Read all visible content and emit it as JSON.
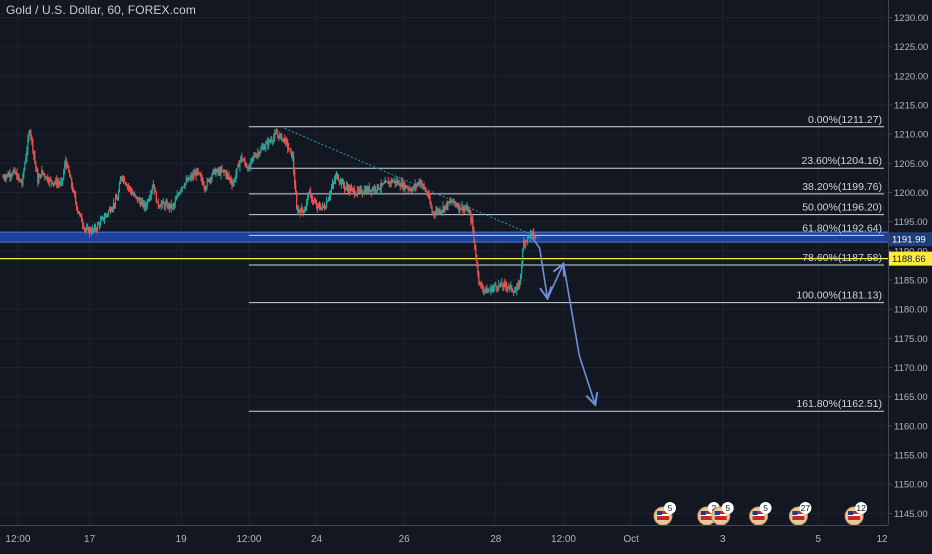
{
  "header": {
    "symbol_title": "Gold / U.S. Dollar, 60, FOREX.com"
  },
  "colors": {
    "background": "#131722",
    "grid": "#1f2330",
    "axis_text": "#b2b5be",
    "up_candle": "#26a69a",
    "down_candle": "#ef5350",
    "fib_line": "#d1d4dc",
    "support_zone": "#2962ff",
    "yellow_line": "#ffeb3b",
    "arrow": "#6f8fd8",
    "trendline": "#26a69a"
  },
  "chart_data": {
    "type": "candlestick",
    "title": "Gold / U.S. Dollar, 60, FOREX.com",
    "y_axis": {
      "range": [
        1143,
        1233
      ],
      "ticks": [
        1145,
        1150,
        1155,
        1160,
        1165,
        1170,
        1175,
        1180,
        1185,
        1190,
        1195,
        1200,
        1205,
        1210,
        1215,
        1220,
        1225,
        1230
      ],
      "tick_labels": [
        "1145.00",
        "1150.00",
        "1155.00",
        "1160.00",
        "1165.00",
        "1170.00",
        "1175.00",
        "1180.00",
        "1185.00",
        "1190.00",
        "1195.00",
        "1200.00",
        "1205.00",
        "1210.00",
        "1215.00",
        "1220.00",
        "1225.00",
        "1230.00"
      ]
    },
    "x_axis": {
      "range_bars": [
        0,
        222
      ],
      "ticks": [
        {
          "bar": 4,
          "label": "12:00"
        },
        {
          "bar": 22,
          "label": "17"
        },
        {
          "bar": 45,
          "label": "19"
        },
        {
          "bar": 62,
          "label": "12:00"
        },
        {
          "bar": 79,
          "label": "24"
        },
        {
          "bar": 101,
          "label": "26"
        },
        {
          "bar": 124,
          "label": "28"
        },
        {
          "bar": 141,
          "label": "12:00"
        },
        {
          "bar": 158,
          "label": "Oct"
        },
        {
          "bar": 181,
          "label": "3"
        },
        {
          "bar": 205,
          "label": "5"
        },
        {
          "bar": 221,
          "label": "12"
        }
      ]
    },
    "price_path": [
      [
        0,
        1202.6
      ],
      [
        3,
        1203.5
      ],
      [
        5,
        1201.5
      ],
      [
        7,
        1211
      ],
      [
        9,
        1202
      ],
      [
        10,
        1203.5
      ],
      [
        12,
        1202
      ],
      [
        15,
        1201.5
      ],
      [
        16,
        1205.5
      ],
      [
        19,
        1197
      ],
      [
        21,
        1193.5
      ],
      [
        23,
        1193.5
      ],
      [
        26,
        1196
      ],
      [
        29,
        1199
      ],
      [
        30,
        1203
      ],
      [
        33,
        1199.5
      ],
      [
        36,
        1197.5
      ],
      [
        38,
        1201.5
      ],
      [
        39,
        1198
      ],
      [
        40,
        1198
      ],
      [
        43,
        1197.5
      ],
      [
        45,
        1201
      ],
      [
        49,
        1203.5
      ],
      [
        51,
        1201
      ],
      [
        53,
        1203.5
      ],
      [
        56,
        1203.5
      ],
      [
        58,
        1201.5
      ],
      [
        60,
        1206
      ],
      [
        62,
        1204
      ],
      [
        63,
        1206
      ],
      [
        66,
        1208
      ],
      [
        69,
        1210
      ],
      [
        71,
        1209
      ],
      [
        73,
        1206
      ],
      [
        74,
        1197
      ],
      [
        76,
        1197
      ],
      [
        77,
        1200
      ],
      [
        79,
        1197.5
      ],
      [
        81,
        1197.5
      ],
      [
        84,
        1203
      ],
      [
        86,
        1201
      ],
      [
        89,
        1200
      ],
      [
        92,
        1200.5
      ],
      [
        95,
        1201
      ],
      [
        98,
        1202
      ],
      [
        100,
        1201.5
      ],
      [
        103,
        1200.5
      ],
      [
        105,
        1202
      ],
      [
        107,
        1199.5
      ],
      [
        108,
        1196.5
      ],
      [
        110,
        1197
      ],
      [
        113,
        1198.5
      ],
      [
        115,
        1197.5
      ],
      [
        117,
        1197
      ],
      [
        118,
        1195
      ],
      [
        119,
        1189
      ],
      [
        120,
        1184
      ],
      [
        122,
        1183
      ],
      [
        124,
        1184
      ],
      [
        127,
        1184
      ],
      [
        129,
        1183
      ],
      [
        130,
        1184.5
      ],
      [
        131,
        1191.5
      ],
      [
        133,
        1193
      ],
      [
        134,
        1192.2
      ]
    ],
    "fibonacci": {
      "levels": [
        {
          "label": "0.00%(1211.27)",
          "price": 1211.27
        },
        {
          "label": "23.60%(1204.16)",
          "price": 1204.16
        },
        {
          "label": "38.20%(1199.76)",
          "price": 1199.76
        },
        {
          "label": "50.00%(1196.20)",
          "price": 1196.2
        },
        {
          "label": "61.80%(1192.64)",
          "price": 1192.64
        },
        {
          "label": "78.60%(1187.58)",
          "price": 1187.58
        },
        {
          "label": "100.00%(1181.13)",
          "price": 1181.13
        },
        {
          "label": "161.80%(1162.51)",
          "price": 1162.51
        }
      ],
      "bar_start": 62,
      "bar_end": 222
    },
    "support_zone": {
      "low": 1191.5,
      "high": 1193.2
    },
    "price_labels": [
      {
        "price": 1191.99,
        "label": "1191.99",
        "style": "blue"
      },
      {
        "price": 1188.66,
        "label": "1188.66",
        "style": "yellow"
      }
    ],
    "yellow_line_price": 1188.66,
    "trendline": [
      [
        71,
        1211
      ],
      [
        135,
        1192.2
      ]
    ],
    "projection_arrows": [
      {
        "points": [
          [
            133,
            1192.4
          ],
          [
            135,
            1190.5
          ],
          [
            137,
            1181.8
          ]
        ]
      },
      {
        "points": [
          [
            137,
            1181.8
          ],
          [
            141,
            1187.8
          ]
        ]
      },
      {
        "points": [
          [
            141,
            1187.8
          ],
          [
            145,
            1172
          ],
          [
            149,
            1163.6
          ]
        ]
      }
    ],
    "events": [
      {
        "bar": 166,
        "label": "5"
      },
      {
        "bar": 177,
        "label": "2"
      },
      {
        "bar": 180.5,
        "label": "5"
      },
      {
        "bar": 190,
        "label": "5"
      },
      {
        "bar": 200,
        "label": "27"
      },
      {
        "bar": 214,
        "label": "12"
      }
    ]
  }
}
